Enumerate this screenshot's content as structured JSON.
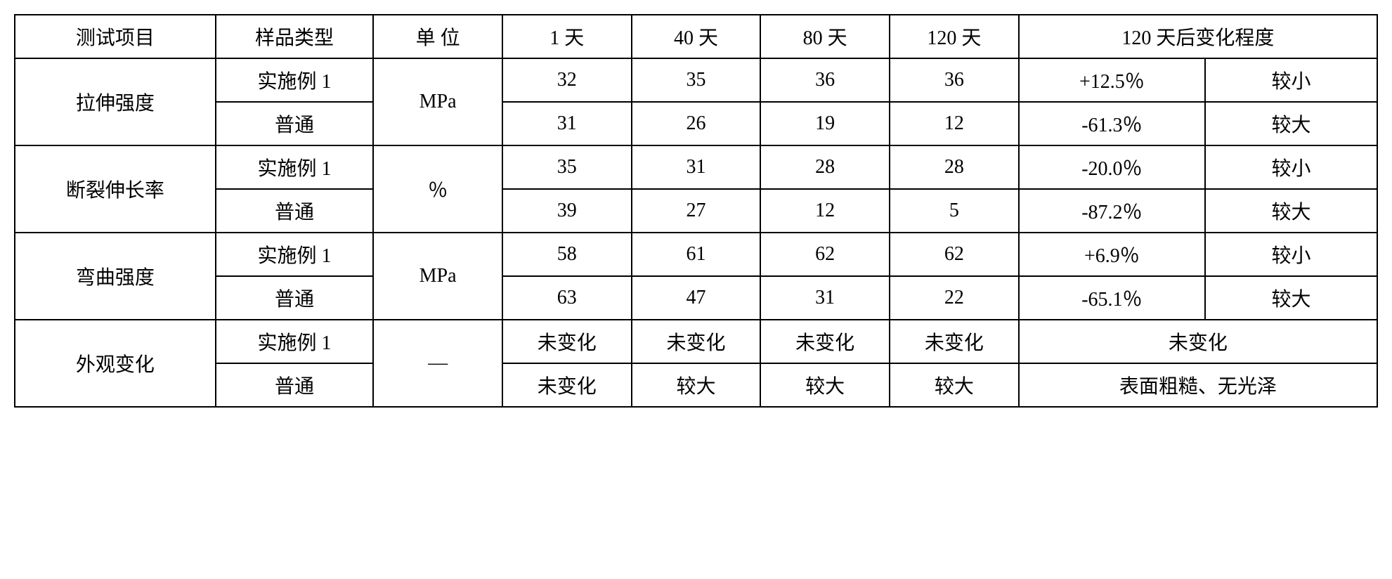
{
  "header": {
    "test_item": "测试项目",
    "sample_type": "样品类型",
    "unit": "单 位",
    "day1": "1 天",
    "day40": "40 天",
    "day80": "80 天",
    "day120": "120 天",
    "change_degree": "120 天后变化程度"
  },
  "groups": [
    {
      "name": "拉伸强度",
      "unit": "MPa",
      "rows": [
        {
          "sample": "实施例 1",
          "d1": "32",
          "d40": "35",
          "d80": "36",
          "d120": "36",
          "chg_pct": "+12.5％",
          "chg_lvl": "较小"
        },
        {
          "sample": "普通",
          "d1": "31",
          "d40": "26",
          "d80": "19",
          "d120": "12",
          "chg_pct": "-61.3％",
          "chg_lvl": "较大"
        }
      ]
    },
    {
      "name": "断裂伸长率",
      "unit": "％",
      "rows": [
        {
          "sample": "实施例 1",
          "d1": "35",
          "d40": "31",
          "d80": "28",
          "d120": "28",
          "chg_pct": "-20.0％",
          "chg_lvl": "较小"
        },
        {
          "sample": "普通",
          "d1": "39",
          "d40": "27",
          "d80": "12",
          "d120": "5",
          "chg_pct": "-87.2％",
          "chg_lvl": "较大"
        }
      ]
    },
    {
      "name": "弯曲强度",
      "unit": "MPa",
      "rows": [
        {
          "sample": "实施例 1",
          "d1": "58",
          "d40": "61",
          "d80": "62",
          "d120": "62",
          "chg_pct": "+6.9％",
          "chg_lvl": "较小"
        },
        {
          "sample": "普通",
          "d1": "63",
          "d40": "47",
          "d80": "31",
          "d120": "22",
          "chg_pct": "-65.1％",
          "chg_lvl": "较大"
        }
      ]
    },
    {
      "name": "外观变化",
      "unit": "—",
      "rows": [
        {
          "sample": "实施例 1",
          "d1": "未变化",
          "d40": "未变化",
          "d80": "未变化",
          "d120": "未变化",
          "chg_merged": "未变化"
        },
        {
          "sample": "普通",
          "d1": "未变化",
          "d40": "较大",
          "d80": "较大",
          "d120": "较大",
          "chg_merged": "表面粗糙、无光泽"
        }
      ]
    }
  ]
}
